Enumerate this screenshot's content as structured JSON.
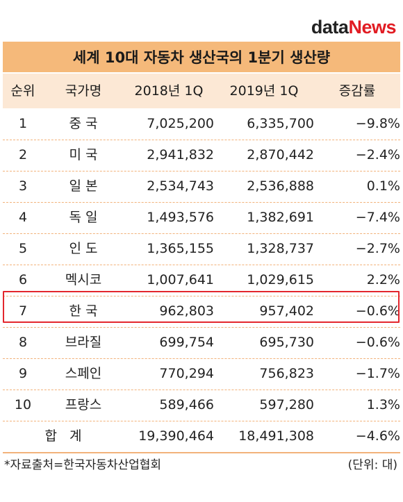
{
  "brand": {
    "logo_part1": "data",
    "logo_part2": "News",
    "data_color": "#222222",
    "news_color": "#e11c23"
  },
  "chart_data": {
    "type": "table",
    "title": "세계 10대 자동차 생산국의 1분기 생산량",
    "columns": [
      "순위",
      "국가명",
      "2018년 1Q",
      "2019년 1Q",
      "증감률"
    ],
    "rows": [
      {
        "rank": "1",
        "country": "중 국",
        "y2018": "7,025,200",
        "y2019": "6,335,700",
        "change": "−9.8%"
      },
      {
        "rank": "2",
        "country": "미 국",
        "y2018": "2,941,832",
        "y2019": "2,870,442",
        "change": "−2.4%"
      },
      {
        "rank": "3",
        "country": "일 본",
        "y2018": "2,534,743",
        "y2019": "2,536,888",
        "change": "0.1%"
      },
      {
        "rank": "4",
        "country": "독 일",
        "y2018": "1,493,576",
        "y2019": "1,382,691",
        "change": "−7.4%"
      },
      {
        "rank": "5",
        "country": "인 도",
        "y2018": "1,365,155",
        "y2019": "1,328,737",
        "change": "−2.7%"
      },
      {
        "rank": "6",
        "country": "멕시코",
        "y2018": "1,007,641",
        "y2019": "1,029,615",
        "change": "2.2%"
      },
      {
        "rank": "7",
        "country": "한 국",
        "y2018": "962,803",
        "y2019": "957,402",
        "change": "−0.6%"
      },
      {
        "rank": "8",
        "country": "브라질",
        "y2018": "699,754",
        "y2019": "695,730",
        "change": "−0.6%"
      },
      {
        "rank": "9",
        "country": "스페인",
        "y2018": "770,294",
        "y2019": "756,823",
        "change": "−1.7%"
      },
      {
        "rank": "10",
        "country": "프랑스",
        "y2018": "589,466",
        "y2019": "597,280",
        "change": "1.3%"
      }
    ],
    "total": {
      "label": "합   계",
      "y2018": "19,390,464",
      "y2019": "18,491,308",
      "change": "−4.6%"
    },
    "highlighted_row_rank": "7",
    "highlight_color": "#e3262d",
    "header_color": "#f5b97a",
    "subheader_color": "#fce8d5"
  },
  "footer": {
    "source": "*자료출처=한국자동차산업협회",
    "unit": "(단위: 대)"
  }
}
